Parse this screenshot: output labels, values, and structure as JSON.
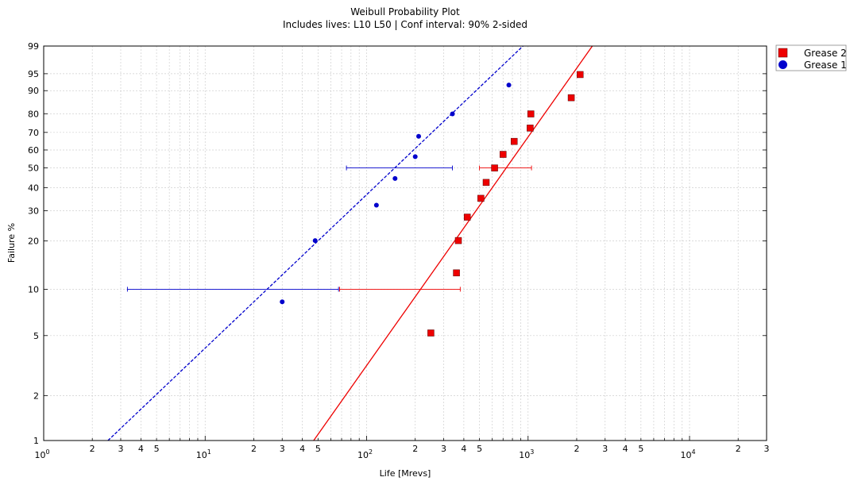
{
  "chart_data": {
    "type": "scatter",
    "title": "Weibull Probability Plot",
    "subtitle": "Includes lives: L10 L50 | Conf interval: 90% 2-sided",
    "xlabel": "Life [Mrevs]",
    "ylabel": "Failure %",
    "x_scale": "log",
    "y_scale": "weibull",
    "xlim": [
      1,
      30000
    ],
    "ylim": [
      1,
      99
    ],
    "grid": true,
    "legend_position": "outside-top-right",
    "x_major_ticks": [
      1,
      10,
      100,
      1000,
      10000
    ],
    "x_major_tick_labels": [
      {
        "base": "10",
        "exp": "0"
      },
      {
        "base": "10",
        "exp": "1"
      },
      {
        "base": "10",
        "exp": "2"
      },
      {
        "base": "10",
        "exp": "3"
      },
      {
        "base": "10",
        "exp": "4"
      }
    ],
    "x_minor_ticks": [
      {
        "value": 2,
        "label": "2"
      },
      {
        "value": 3,
        "label": "3"
      },
      {
        "value": 4,
        "label": "4"
      },
      {
        "value": 5,
        "label": "5"
      },
      {
        "value": 20,
        "label": "2"
      },
      {
        "value": 30,
        "label": "3"
      },
      {
        "value": 40,
        "label": "4"
      },
      {
        "value": 50,
        "label": "5"
      },
      {
        "value": 200,
        "label": "2"
      },
      {
        "value": 300,
        "label": "3"
      },
      {
        "value": 400,
        "label": "4"
      },
      {
        "value": 500,
        "label": "5"
      },
      {
        "value": 2000,
        "label": "2"
      },
      {
        "value": 3000,
        "label": "3"
      },
      {
        "value": 4000,
        "label": "4"
      },
      {
        "value": 5000,
        "label": "5"
      },
      {
        "value": 20000,
        "label": "2"
      },
      {
        "value": 30000,
        "label": "3"
      }
    ],
    "y_ticks": [
      1,
      2,
      5,
      10,
      20,
      30,
      40,
      50,
      60,
      70,
      80,
      90,
      95,
      99
    ],
    "series": [
      {
        "name": "Grease 2",
        "color": "#ee0000",
        "marker": "square",
        "points": [
          {
            "x": 250,
            "y": 5.2
          },
          {
            "x": 360,
            "y": 12.7
          },
          {
            "x": 370,
            "y": 20.1
          },
          {
            "x": 420,
            "y": 27.6
          },
          {
            "x": 510,
            "y": 35.1
          },
          {
            "x": 550,
            "y": 42.5
          },
          {
            "x": 620,
            "y": 50.0
          },
          {
            "x": 700,
            "y": 57.5
          },
          {
            "x": 820,
            "y": 64.9
          },
          {
            "x": 1030,
            "y": 72.4
          },
          {
            "x": 1040,
            "y": 79.9
          },
          {
            "x": 1850,
            "y": 87.3
          },
          {
            "x": 2100,
            "y": 94.8
          }
        ],
        "fit": {
          "style": "solid",
          "points": [
            {
              "x": 47,
              "y": 1
            },
            {
              "x": 2500,
              "y": 99
            }
          ]
        },
        "confidence_intervals": [
          {
            "level": "L10",
            "lower": 68,
            "upper": 380,
            "y": 10
          },
          {
            "level": "L50",
            "lower": 500,
            "upper": 1050,
            "y": 50
          }
        ]
      },
      {
        "name": "Grease 1",
        "color": "#0000cc",
        "marker": "circle",
        "points": [
          {
            "x": 30,
            "y": 8.3
          },
          {
            "x": 48,
            "y": 20.1
          },
          {
            "x": 115,
            "y": 32.2
          },
          {
            "x": 150,
            "y": 44.5
          },
          {
            "x": 200,
            "y": 56.2
          },
          {
            "x": 210,
            "y": 67.8
          },
          {
            "x": 340,
            "y": 79.9
          },
          {
            "x": 760,
            "y": 91.9
          }
        ],
        "fit": {
          "style": "dashed",
          "points": [
            {
              "x": 2.5,
              "y": 1
            },
            {
              "x": 930,
              "y": 99
            }
          ]
        },
        "confidence_intervals": [
          {
            "level": "L10",
            "lower": 3.3,
            "upper": 67,
            "y": 10
          },
          {
            "level": "L50",
            "lower": 75,
            "upper": 340,
            "y": 50
          }
        ]
      }
    ],
    "legend": [
      {
        "label": "Grease 2",
        "color": "#ee0000",
        "marker": "square"
      },
      {
        "label": "Grease 1",
        "color": "#0000cc",
        "marker": "circle"
      }
    ]
  }
}
